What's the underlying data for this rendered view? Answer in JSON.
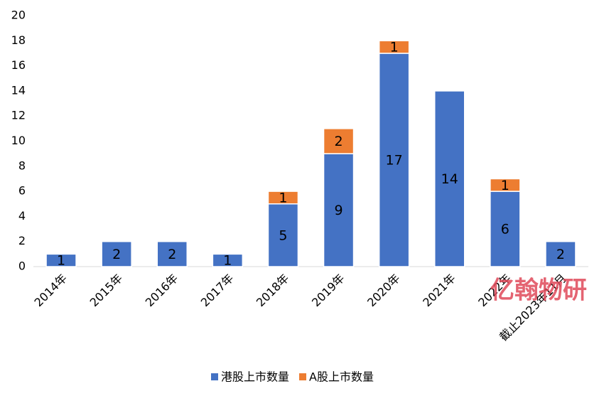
{
  "chart_data": {
    "type": "stacked-bar",
    "categories": [
      "2014年",
      "2015年",
      "2016年",
      "2017年",
      "2018年",
      "2019年",
      "2020年",
      "2021年",
      "2022年",
      "截止2023年11月"
    ],
    "series": [
      {
        "name": "港股上市数量",
        "color": "#4472c4",
        "values": [
          1,
          2,
          2,
          1,
          5,
          9,
          17,
          14,
          6,
          2
        ]
      },
      {
        "name": "A股上市数量",
        "color": "#ed7d31",
        "values": [
          null,
          null,
          null,
          null,
          1,
          2,
          1,
          null,
          1,
          null
        ]
      }
    ],
    "ylim": [
      0,
      20
    ],
    "yticks": [
      0,
      2,
      4,
      6,
      8,
      10,
      12,
      14,
      16,
      18,
      20
    ],
    "grid": false,
    "legend": "bottom",
    "watermark": "亿翰物研"
  }
}
